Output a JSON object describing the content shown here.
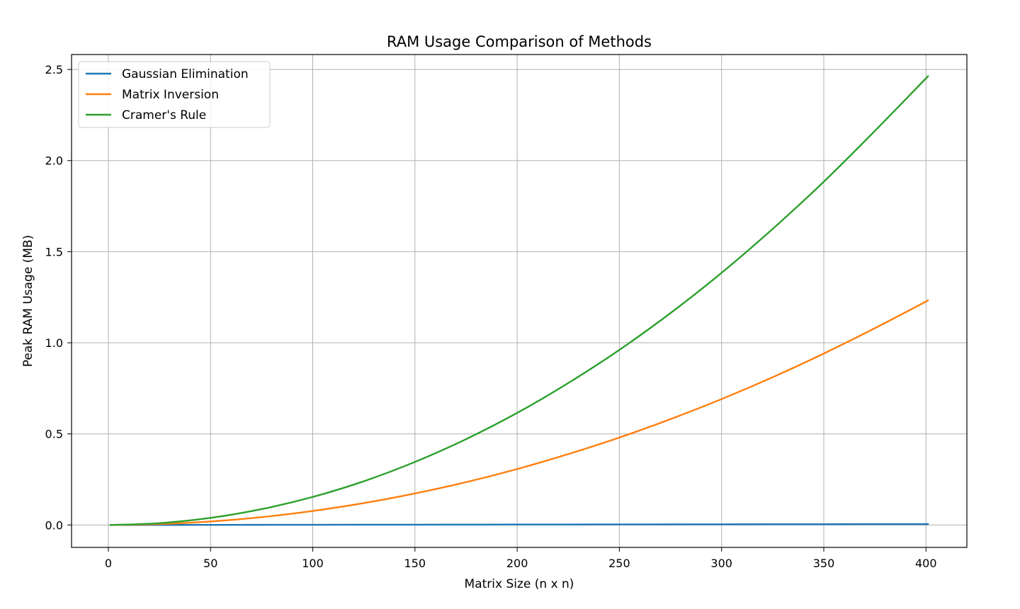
{
  "chart_data": {
    "type": "line",
    "title": "RAM Usage Comparison of Methods",
    "xlabel": "Matrix Size (n x n)",
    "ylabel": "Peak RAM Usage (MB)",
    "xlim": [
      -18,
      420
    ],
    "ylim": [
      -0.123,
      2.582
    ],
    "xticks": [
      0,
      50,
      100,
      150,
      200,
      250,
      300,
      350,
      400
    ],
    "xtick_labels": [
      "0",
      "50",
      "100",
      "150",
      "200",
      "250",
      "300",
      "350",
      "400"
    ],
    "yticks": [
      0.0,
      0.5,
      1.0,
      1.5,
      2.0,
      2.5
    ],
    "ytick_labels": [
      "0.0",
      "0.5",
      "1.0",
      "1.5",
      "2.0",
      "2.5"
    ],
    "grid": true,
    "legend_position": "top-left",
    "x": [
      1,
      25,
      50,
      75,
      100,
      125,
      150,
      175,
      200,
      225,
      250,
      275,
      300,
      325,
      350,
      375,
      401
    ],
    "series": [
      {
        "name": "Gaussian Elimination",
        "color": "#1f77b4",
        "values": [
          0.0,
          0.0002,
          0.0006,
          0.0009,
          0.0012,
          0.0015,
          0.0018,
          0.0021,
          0.0024,
          0.0027,
          0.003,
          0.0033,
          0.0036,
          0.0039,
          0.0042,
          0.0045,
          0.0048
        ]
      },
      {
        "name": "Matrix Inversion",
        "color": "#ff7f0e",
        "values": [
          0.0,
          0.005,
          0.019,
          0.043,
          0.077,
          0.12,
          0.173,
          0.235,
          0.307,
          0.389,
          0.48,
          0.581,
          0.691,
          0.811,
          0.941,
          1.08,
          1.232
        ]
      },
      {
        "name": "Cramer's Rule",
        "color": "#2ca02c",
        "values": [
          0.0,
          0.01,
          0.039,
          0.087,
          0.154,
          0.24,
          0.346,
          0.471,
          0.615,
          0.779,
          0.961,
          1.163,
          1.384,
          1.625,
          1.884,
          2.163,
          2.463
        ]
      }
    ]
  }
}
